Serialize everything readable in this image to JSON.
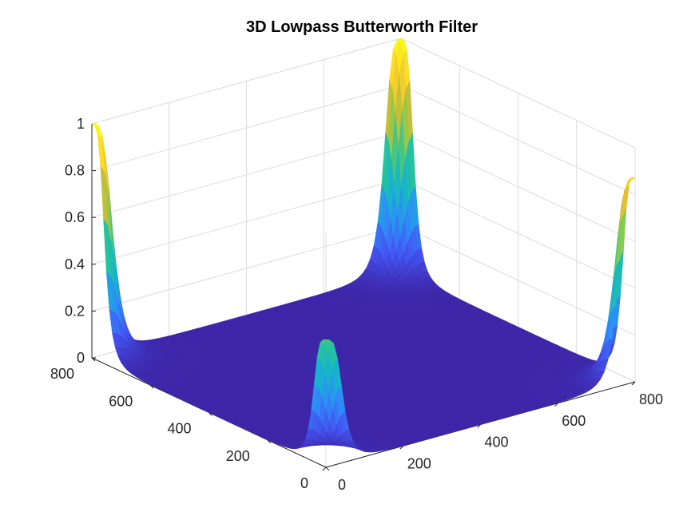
{
  "chart_data": {
    "type": "surface",
    "title": "3D Lowpass Butterworth Filter",
    "xlabel": "",
    "ylabel": "",
    "zlabel": "",
    "x_ticks": [
      0,
      200,
      400,
      600,
      800
    ],
    "y_ticks": [
      0,
      200,
      400,
      600,
      800
    ],
    "z_ticks": [
      0,
      0.2,
      0.4,
      0.6,
      0.8,
      1
    ],
    "z_tick_labels": [
      "0",
      "0.2",
      "0.4",
      "0.6",
      "0.8",
      "1"
    ],
    "xlim": [
      0,
      800
    ],
    "ylim": [
      0,
      800
    ],
    "zlim": [
      0,
      1
    ],
    "grid": true,
    "colormap": [
      "#3e26a8",
      "#4353f0",
      "#2f8bf9",
      "#16b3cf",
      "#27c49a",
      "#88cb4f",
      "#e2b82f",
      "#fbd92a",
      "#f9fb15"
    ],
    "peaks": [
      {
        "x": 0,
        "y": 800,
        "z": 1.0
      },
      {
        "x": 0,
        "y": 0,
        "z": 0.54
      },
      {
        "x": 800,
        "y": 0,
        "z": 0.87
      },
      {
        "x": 800,
        "y": 800,
        "z": 1.0
      }
    ]
  }
}
